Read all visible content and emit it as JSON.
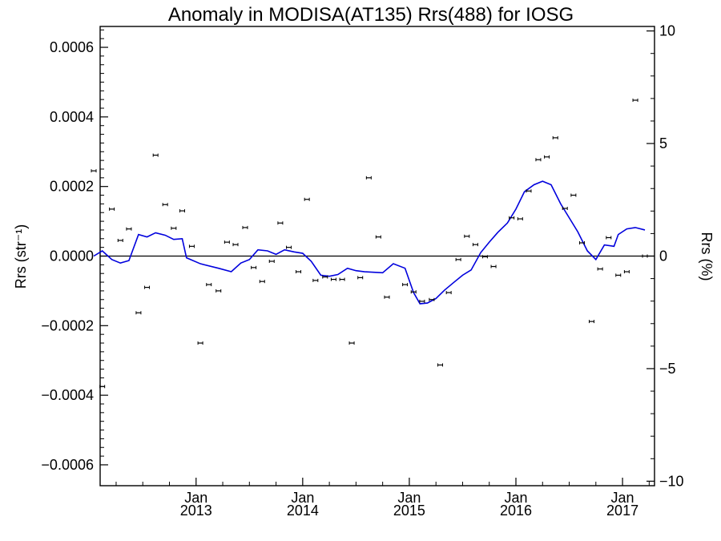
{
  "chart_data": {
    "type": "scatter",
    "title": "Anomaly in MODISA(AT135) Rrs(488) for IOSG",
    "ylabel_left": "Rrs (str⁻¹)",
    "ylabel_right": "Rrs (%)",
    "xlabel": "",
    "xlim": [
      2012.1,
      2017.3
    ],
    "ylim_left": [
      -0.00066,
      0.00066
    ],
    "ylim_right": [
      -10.2,
      10.2
    ],
    "grid": false,
    "x_ticks": [
      {
        "value": 2013.0,
        "line1": "Jan",
        "line2": "2013"
      },
      {
        "value": 2014.0,
        "line1": "Jan",
        "line2": "2014"
      },
      {
        "value": 2015.0,
        "line1": "Jan",
        "line2": "2015"
      },
      {
        "value": 2016.0,
        "line1": "Jan",
        "line2": "2016"
      },
      {
        "value": 2017.0,
        "line1": "Jan",
        "line2": "2017"
      }
    ],
    "y_ticks_left": [
      {
        "value": 0.0006,
        "label": "0.0006"
      },
      {
        "value": 0.0004,
        "label": "0.0004"
      },
      {
        "value": 0.0002,
        "label": "0.0002"
      },
      {
        "value": 0.0,
        "label": "0.0000"
      },
      {
        "value": -0.0002,
        "label": "−0.0002"
      },
      {
        "value": -0.0004,
        "label": "−0.0004"
      },
      {
        "value": -0.0006,
        "label": "−0.0006"
      }
    ],
    "y_ticks_right": [
      {
        "value": 10,
        "label": "10"
      },
      {
        "value": 5,
        "label": "5"
      },
      {
        "value": 0,
        "label": "0"
      },
      {
        "value": -5,
        "label": "−5"
      },
      {
        "value": -10,
        "label": "−10"
      }
    ],
    "series": [
      {
        "kind": "points_with_errorbars",
        "color": "#000000",
        "points": [
          {
            "x": 2012.04,
            "y": 0.000245
          },
          {
            "x": 2012.12,
            "y": -0.000375
          },
          {
            "x": 2012.21,
            "y": 0.000135
          },
          {
            "x": 2012.29,
            "y": 4.5e-05
          },
          {
            "x": 2012.37,
            "y": 7.8e-05
          },
          {
            "x": 2012.46,
            "y": -0.000163
          },
          {
            "x": 2012.54,
            "y": -9e-05
          },
          {
            "x": 2012.62,
            "y": 0.00029
          },
          {
            "x": 2012.71,
            "y": 0.000148
          },
          {
            "x": 2012.79,
            "y": 8e-05
          },
          {
            "x": 2012.87,
            "y": 0.00013
          },
          {
            "x": 2012.96,
            "y": 2.8e-05
          },
          {
            "x": 2013.04,
            "y": -0.00025
          },
          {
            "x": 2013.12,
            "y": -8.2e-05
          },
          {
            "x": 2013.21,
            "y": -0.0001
          },
          {
            "x": 2013.29,
            "y": 4e-05
          },
          {
            "x": 2013.37,
            "y": 3.3e-05
          },
          {
            "x": 2013.46,
            "y": 8.2e-05
          },
          {
            "x": 2013.54,
            "y": -3.3e-05
          },
          {
            "x": 2013.62,
            "y": -7.3e-05
          },
          {
            "x": 2013.71,
            "y": -1.5e-05
          },
          {
            "x": 2013.79,
            "y": 9.5e-05
          },
          {
            "x": 2013.87,
            "y": 2.5e-05
          },
          {
            "x": 2013.96,
            "y": -4.5e-05
          },
          {
            "x": 2014.04,
            "y": 0.000163
          },
          {
            "x": 2014.12,
            "y": -7e-05
          },
          {
            "x": 2014.21,
            "y": -6e-05
          },
          {
            "x": 2014.29,
            "y": -6.7e-05
          },
          {
            "x": 2014.37,
            "y": -6.7e-05
          },
          {
            "x": 2014.46,
            "y": -0.00025
          },
          {
            "x": 2014.54,
            "y": -6.2e-05
          },
          {
            "x": 2014.62,
            "y": 0.000225
          },
          {
            "x": 2014.71,
            "y": 5.5e-05
          },
          {
            "x": 2014.79,
            "y": -0.000118
          },
          {
            "x": 2014.96,
            "y": -8.2e-05
          },
          {
            "x": 2015.04,
            "y": -0.000103
          },
          {
            "x": 2015.12,
            "y": -0.00013
          },
          {
            "x": 2015.21,
            "y": -0.000125
          },
          {
            "x": 2015.29,
            "y": -0.000313
          },
          {
            "x": 2015.37,
            "y": -0.000105
          },
          {
            "x": 2015.46,
            "y": -1e-05
          },
          {
            "x": 2015.54,
            "y": 5.7e-05
          },
          {
            "x": 2015.62,
            "y": 3.3e-05
          },
          {
            "x": 2015.71,
            "y": -2e-06
          },
          {
            "x": 2015.79,
            "y": -3e-05
          },
          {
            "x": 2015.96,
            "y": 0.00011
          },
          {
            "x": 2016.04,
            "y": 0.000107
          },
          {
            "x": 2016.12,
            "y": 0.000187
          },
          {
            "x": 2016.21,
            "y": 0.000277
          },
          {
            "x": 2016.29,
            "y": 0.000285
          },
          {
            "x": 2016.37,
            "y": 0.00034
          },
          {
            "x": 2016.46,
            "y": 0.000137
          },
          {
            "x": 2016.54,
            "y": 0.000175
          },
          {
            "x": 2016.62,
            "y": 3.8e-05
          },
          {
            "x": 2016.71,
            "y": -0.000188
          },
          {
            "x": 2016.79,
            "y": -3.7e-05
          },
          {
            "x": 2016.87,
            "y": 5.3e-05
          },
          {
            "x": 2016.96,
            "y": -5.5e-05
          },
          {
            "x": 2017.04,
            "y": -4.5e-05
          },
          {
            "x": 2017.12,
            "y": 0.000448
          },
          {
            "x": 2017.21,
            "y": 0.0
          }
        ]
      },
      {
        "kind": "line",
        "color": "#0000dd",
        "points": [
          {
            "x": 2012.04,
            "y": 0.0
          },
          {
            "x": 2012.12,
            "y": 1.5e-05
          },
          {
            "x": 2012.21,
            "y": -1e-05
          },
          {
            "x": 2012.29,
            "y": -2e-05
          },
          {
            "x": 2012.37,
            "y": -1.3e-05
          },
          {
            "x": 2012.46,
            "y": 6.2e-05
          },
          {
            "x": 2012.54,
            "y": 5.5e-05
          },
          {
            "x": 2012.62,
            "y": 6.7e-05
          },
          {
            "x": 2012.71,
            "y": 6e-05
          },
          {
            "x": 2012.79,
            "y": 4.8e-05
          },
          {
            "x": 2012.87,
            "y": 5e-05
          },
          {
            "x": 2012.91,
            "y": -5e-06
          },
          {
            "x": 2013.04,
            "y": -2.2e-05
          },
          {
            "x": 2013.21,
            "y": -3.5e-05
          },
          {
            "x": 2013.33,
            "y": -4.5e-05
          },
          {
            "x": 2013.42,
            "y": -2e-05
          },
          {
            "x": 2013.5,
            "y": -1e-05
          },
          {
            "x": 2013.58,
            "y": 1.8e-05
          },
          {
            "x": 2013.67,
            "y": 1.5e-05
          },
          {
            "x": 2013.75,
            "y": 5e-06
          },
          {
            "x": 2013.83,
            "y": 1.8e-05
          },
          {
            "x": 2013.92,
            "y": 1.2e-05
          },
          {
            "x": 2014.0,
            "y": 8e-06
          },
          {
            "x": 2014.08,
            "y": -1.5e-05
          },
          {
            "x": 2014.17,
            "y": -5.5e-05
          },
          {
            "x": 2014.25,
            "y": -5.8e-05
          },
          {
            "x": 2014.33,
            "y": -5.3e-05
          },
          {
            "x": 2014.42,
            "y": -3.5e-05
          },
          {
            "x": 2014.5,
            "y": -4.2e-05
          },
          {
            "x": 2014.58,
            "y": -4.5e-05
          },
          {
            "x": 2014.75,
            "y": -4.8e-05
          },
          {
            "x": 2014.85,
            "y": -2.2e-05
          },
          {
            "x": 2014.96,
            "y": -3.5e-05
          },
          {
            "x": 2015.04,
            "y": -0.000105
          },
          {
            "x": 2015.1,
            "y": -0.000137
          },
          {
            "x": 2015.17,
            "y": -0.000135
          },
          {
            "x": 2015.25,
            "y": -0.000122
          },
          {
            "x": 2015.33,
            "y": -9.8e-05
          },
          {
            "x": 2015.42,
            "y": -7.5e-05
          },
          {
            "x": 2015.5,
            "y": -5.5e-05
          },
          {
            "x": 2015.58,
            "y": -4e-05
          },
          {
            "x": 2015.67,
            "y": 1e-05
          },
          {
            "x": 2015.75,
            "y": 4e-05
          },
          {
            "x": 2015.83,
            "y": 6.8e-05
          },
          {
            "x": 2015.92,
            "y": 9.5e-05
          },
          {
            "x": 2016.0,
            "y": 0.000135
          },
          {
            "x": 2016.08,
            "y": 0.000185
          },
          {
            "x": 2016.17,
            "y": 0.000205
          },
          {
            "x": 2016.25,
            "y": 0.000215
          },
          {
            "x": 2016.33,
            "y": 0.000205
          },
          {
            "x": 2016.42,
            "y": 0.00015
          },
          {
            "x": 2016.5,
            "y": 0.00011
          },
          {
            "x": 2016.58,
            "y": 7e-05
          },
          {
            "x": 2016.67,
            "y": 1.5e-05
          },
          {
            "x": 2016.75,
            "y": -1e-05
          },
          {
            "x": 2016.83,
            "y": 3.2e-05
          },
          {
            "x": 2016.92,
            "y": 2.8e-05
          },
          {
            "x": 2016.96,
            "y": 6.2e-05
          },
          {
            "x": 2017.04,
            "y": 7.8e-05
          },
          {
            "x": 2017.12,
            "y": 8.2e-05
          },
          {
            "x": 2017.21,
            "y": 7.5e-05
          }
        ]
      }
    ]
  }
}
